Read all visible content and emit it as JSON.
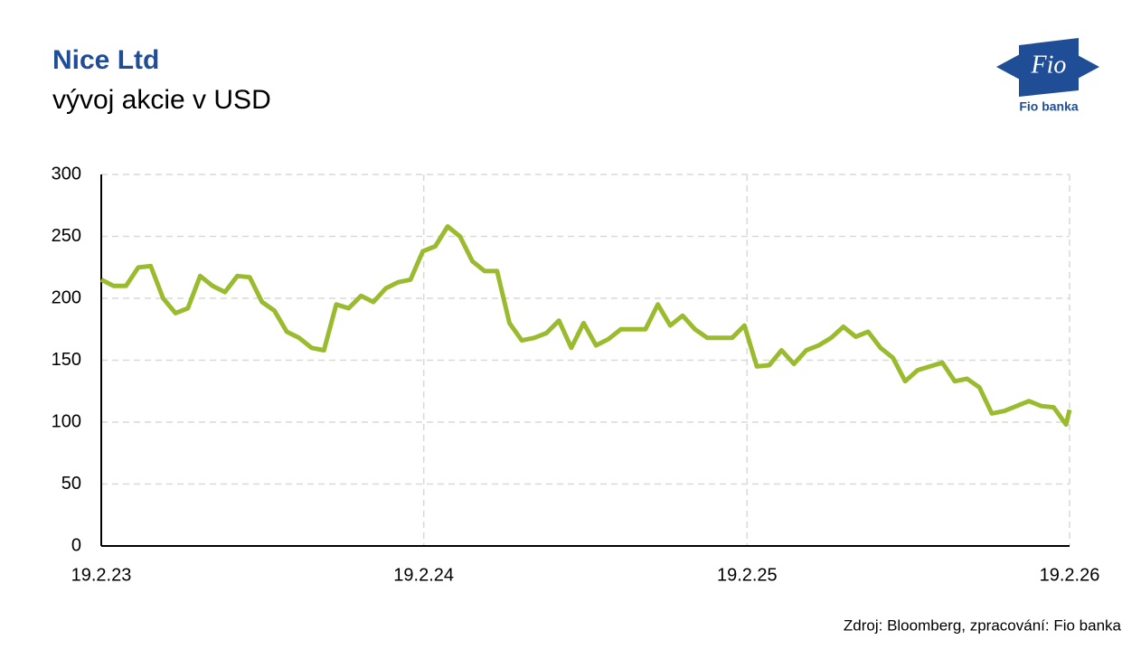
{
  "logo": {
    "name": "Fio",
    "caption": "Fio banka"
  },
  "source": "Zdroj: Bloomberg, zpracování: Fio banka",
  "chart_data": {
    "type": "line",
    "title": "Nice Ltd",
    "subtitle": "vývoj akcie v USD",
    "x": [
      "19.2.23",
      "5.3.23",
      "19.3.23",
      "2.4.23",
      "16.4.23",
      "30.4.23",
      "14.5.23",
      "28.5.23",
      "11.6.23",
      "25.6.23",
      "9.7.23",
      "23.7.23",
      "6.8.23",
      "20.8.23",
      "3.9.23",
      "17.9.23",
      "1.10.23",
      "15.10.23",
      "29.10.23",
      "12.11.23",
      "26.11.23",
      "10.12.23",
      "24.12.23",
      "7.1.24",
      "21.1.24",
      "4.2.24",
      "18.2.24",
      "3.3.24",
      "17.3.24",
      "31.3.24",
      "14.4.24",
      "28.4.24",
      "12.5.24",
      "26.5.24",
      "9.6.24",
      "23.6.24",
      "7.7.24",
      "21.7.24",
      "4.8.24",
      "18.8.24",
      "1.9.24",
      "15.9.24",
      "29.9.24",
      "13.10.24",
      "27.10.24",
      "10.11.24",
      "24.11.24",
      "8.12.24",
      "22.12.24",
      "5.1.25",
      "19.1.25",
      "2.2.25",
      "16.2.25",
      "2.3.25",
      "16.3.25",
      "30.3.25",
      "13.4.25",
      "27.4.25",
      "11.5.25",
      "25.5.25",
      "8.6.25",
      "22.6.25",
      "6.7.25",
      "20.7.25",
      "3.8.25",
      "17.8.25",
      "31.8.25",
      "14.9.25",
      "28.9.25",
      "12.10.25",
      "26.10.25",
      "9.11.25",
      "23.11.25",
      "7.12.25",
      "21.12.25",
      "4.1.26",
      "18.1.26",
      "1.2.26",
      "15.2.26",
      "19.2.26"
    ],
    "series": [
      {
        "name": "Nice Ltd",
        "color": "#9bbb2f",
        "values": [
          215,
          210,
          210,
          225,
          226,
          200,
          188,
          192,
          218,
          210,
          205,
          218,
          217,
          197,
          190,
          173,
          168,
          160,
          158,
          195,
          192,
          202,
          197,
          208,
          213,
          215,
          238,
          242,
          258,
          250,
          230,
          222,
          222,
          180,
          166,
          168,
          172,
          182,
          160,
          180,
          162,
          167,
          175,
          175,
          175,
          195,
          178,
          186,
          175,
          168,
          168,
          168,
          178,
          145,
          146,
          158,
          147,
          158,
          162,
          168,
          177,
          169,
          173,
          160,
          152,
          133,
          142,
          145,
          148,
          133,
          135,
          128,
          107,
          109,
          113,
          117,
          113,
          112,
          98,
          110
        ]
      }
    ],
    "xlim": [
      "19.2.23",
      "19.2.26"
    ],
    "xticks": [
      "19.2.23",
      "19.2.24",
      "19.2.25",
      "19.2.26"
    ],
    "ylim": [
      0,
      300
    ],
    "yticks": [
      0,
      50,
      100,
      150,
      200,
      250,
      300
    ],
    "grid": true
  }
}
